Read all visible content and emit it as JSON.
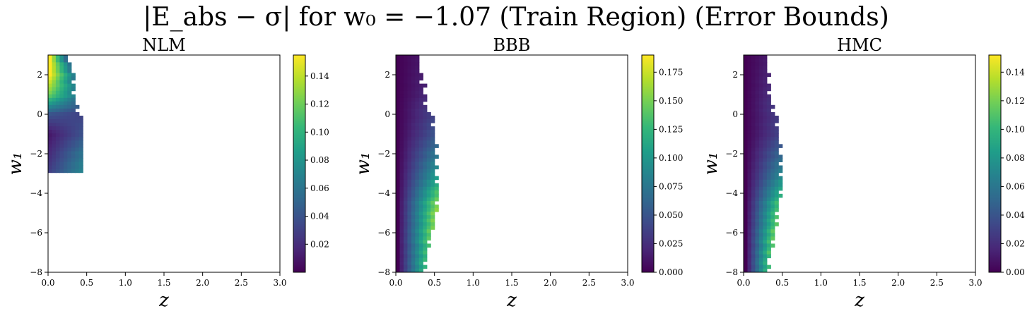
{
  "figure": {
    "title": "|E_abs − σ| for w₀ = −1.07 (Train Region) (Error Bounds)"
  },
  "colormap": {
    "name": "viridis",
    "stops": [
      "#440154",
      "#482878",
      "#3e4989",
      "#31688e",
      "#26828e",
      "#1f9e89",
      "#35b779",
      "#6ece58",
      "#b5de2b",
      "#fde725"
    ]
  },
  "chart_data": [
    {
      "type": "heatmap",
      "title": "NLM",
      "xlabel": "z",
      "ylabel": "w₁",
      "xlim": [
        0,
        3
      ],
      "ylim": [
        -8,
        3
      ],
      "x_ticks": [
        "0.0",
        "0.5",
        "1.0",
        "1.5",
        "2.0",
        "2.5",
        "3.0"
      ],
      "y_ticks": [
        "−8",
        "−6",
        "−4",
        "−2",
        "0",
        "2"
      ],
      "colorbar": {
        "range": [
          0.0,
          0.155
        ],
        "ticks": [
          "0.02",
          "0.04",
          "0.06",
          "0.08",
          "0.10",
          "0.12",
          "0.14"
        ],
        "tick_values": [
          0.02,
          0.04,
          0.06,
          0.08,
          0.1,
          0.12,
          0.14
        ]
      },
      "bands": [
        {
          "w1": 2.9,
          "z_max": 0.22,
          "top": 0.155,
          "bottom": 0.05
        },
        {
          "w1": 2.0,
          "z_max": 0.33,
          "top": 0.155,
          "bottom": 0.06
        },
        {
          "w1": 1.0,
          "z_max": 0.33,
          "top": 0.12,
          "bottom": 0.07
        },
        {
          "w1": 0.0,
          "z_max": 0.4,
          "top": 0.04,
          "bottom": 0.03
        },
        {
          "w1": -1.0,
          "z_max": 0.4,
          "top": 0.01,
          "bottom": 0.04
        },
        {
          "w1": -2.0,
          "z_max": 0.4,
          "top": 0.02,
          "bottom": 0.06
        },
        {
          "w1": -2.9,
          "z_max": 0.4,
          "top": 0.03,
          "bottom": 0.07
        }
      ]
    },
    {
      "type": "heatmap",
      "title": "BBB",
      "xlabel": "z",
      "ylabel": "w₁",
      "xlim": [
        0,
        3
      ],
      "ylim": [
        -8,
        3
      ],
      "x_ticks": [
        "0.0",
        "0.5",
        "1.0",
        "1.5",
        "2.0",
        "2.5",
        "3.0"
      ],
      "y_ticks": [
        "−8",
        "−6",
        "−4",
        "−2",
        "0",
        "2"
      ],
      "colorbar": {
        "range": [
          0.0,
          0.19
        ],
        "ticks": [
          "0.000",
          "0.025",
          "0.050",
          "0.075",
          "0.100",
          "0.125",
          "0.150",
          "0.175"
        ],
        "tick_values": [
          0.0,
          0.025,
          0.05,
          0.075,
          0.1,
          0.125,
          0.15,
          0.175
        ]
      },
      "bands": [
        {
          "w1": 2.9,
          "z_max": 0.28,
          "top": 0.0,
          "bottom": 0.01
        },
        {
          "w1": 1.0,
          "z_max": 0.38,
          "top": 0.0,
          "bottom": 0.02
        },
        {
          "w1": -1.0,
          "z_max": 0.45,
          "top": 0.0,
          "bottom": 0.05
        },
        {
          "w1": -3.0,
          "z_max": 0.48,
          "top": 0.0,
          "bottom": 0.1
        },
        {
          "w1": -4.5,
          "z_max": 0.5,
          "top": 0.0,
          "bottom": 0.16
        },
        {
          "w1": -6.0,
          "z_max": 0.4,
          "top": 0.0,
          "bottom": 0.15
        },
        {
          "w1": -7.2,
          "z_max": 0.35,
          "top": 0.0,
          "bottom": 0.13
        },
        {
          "w1": -8.0,
          "z_max": 0.3,
          "top": 0.0,
          "bottom": 0.12
        }
      ]
    },
    {
      "type": "heatmap",
      "title": "HMC",
      "xlabel": "z",
      "ylabel": "w₁",
      "xlim": [
        0,
        3
      ],
      "ylim": [
        -8,
        3
      ],
      "x_ticks": [
        "0.0",
        "0.5",
        "1.0",
        "1.5",
        "2.0",
        "2.5",
        "3.0"
      ],
      "y_ticks": [
        "−8",
        "−6",
        "−4",
        "−2",
        "0",
        "2"
      ],
      "colorbar": {
        "range": [
          0.0,
          0.152
        ],
        "ticks": [
          "0.00",
          "0.02",
          "0.04",
          "0.06",
          "0.08",
          "0.10",
          "0.12",
          "0.14"
        ],
        "tick_values": [
          0.0,
          0.02,
          0.04,
          0.06,
          0.08,
          0.1,
          0.12,
          0.14
        ]
      },
      "bands": [
        {
          "w1": 2.9,
          "z_max": 0.28,
          "top": 0.0,
          "bottom": 0.01
        },
        {
          "w1": 1.0,
          "z_max": 0.35,
          "top": 0.0,
          "bottom": 0.02
        },
        {
          "w1": -1.0,
          "z_max": 0.4,
          "top": 0.0,
          "bottom": 0.03
        },
        {
          "w1": -3.0,
          "z_max": 0.45,
          "top": 0.0,
          "bottom": 0.07
        },
        {
          "w1": -4.5,
          "z_max": 0.42,
          "top": 0.0,
          "bottom": 0.11
        },
        {
          "w1": -6.0,
          "z_max": 0.35,
          "top": 0.0,
          "bottom": 0.12
        },
        {
          "w1": -7.0,
          "z_max": 0.3,
          "top": 0.0,
          "bottom": 0.11
        },
        {
          "w1": -8.0,
          "z_max": 0.25,
          "top": 0.0,
          "bottom": 0.1
        }
      ]
    }
  ]
}
